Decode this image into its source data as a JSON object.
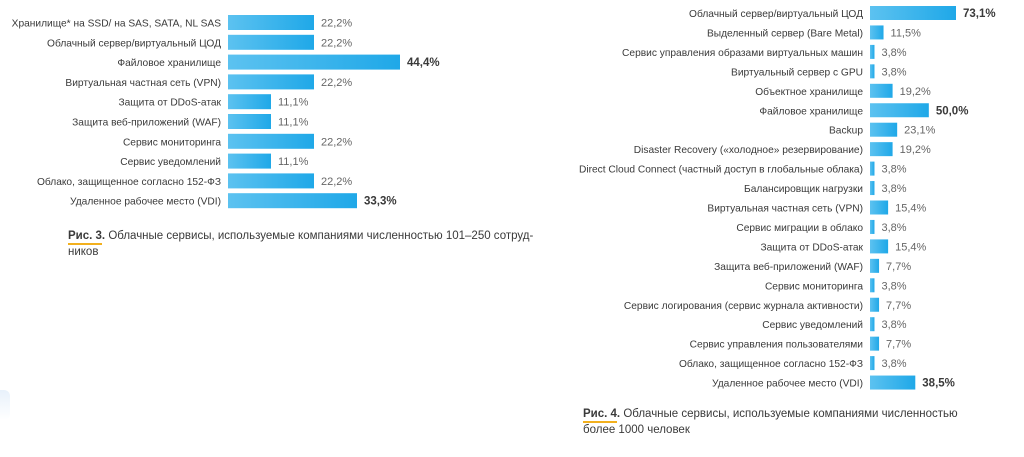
{
  "chart_data": [
    {
      "type": "bar",
      "orientation": "horizontal",
      "categories": [
        "Хранилище* на SSD/  на SAS, SATA, NL SAS",
        "Облачный сервер/виртуальный ЦОД",
        "Файловое хранилище",
        "Виртуальная частная сеть (VPN)",
        "Защита от DDoS-атак",
        "Защита веб-приложений (WAF)",
        "Сервис мониторинга",
        "Сервис уведомлений",
        "Облако, защищенное согласно 152-ФЗ",
        "Удаленное рабочее место (VDI)"
      ],
      "values": [
        22.2,
        22.2,
        44.4,
        22.2,
        11.1,
        11.1,
        22.2,
        11.1,
        22.2,
        33.3
      ],
      "labels": [
        "22,2%",
        "22,2%",
        "44,4%",
        "22,2%",
        "11,1%",
        "11,1%",
        "22,2%",
        "11,1%",
        "22,2%",
        "33,3%"
      ],
      "highlight": [
        2,
        9
      ],
      "color": "#1fa8e8"
    },
    {
      "type": "bar",
      "orientation": "horizontal",
      "categories": [
        "Облачный сервер/виртуальный ЦОД",
        "Выделенный сервер (Bare Metal)",
        "Сервис управления образами виртуальных машин",
        "Виртуальный сервер с GPU",
        "Объектное хранилище",
        "Файловое хранилище",
        "Backup",
        "Disaster Recovery («холодное» резервирование)",
        "Direct Cloud Connect (частный доступ в глобальные облака)",
        "Балансировщик нагрузки",
        "Виртуальная частная сеть (VPN)",
        "Сервис миграции в облако",
        "Защита от DDoS-атак",
        "Защита веб-приложений (WAF)",
        "Сервис мониторинга",
        "Сервис логирования (сервис журнала активности)",
        "Сервис уведомлений",
        "Сервис управления пользователями",
        "Облако, защищенное согласно 152-ФЗ",
        "Удаленное рабочее место (VDI)"
      ],
      "values": [
        73.1,
        11.5,
        3.8,
        3.8,
        19.2,
        50.0,
        23.1,
        19.2,
        3.8,
        3.8,
        15.4,
        3.8,
        15.4,
        7.7,
        3.8,
        7.7,
        3.8,
        7.7,
        3.8,
        38.5
      ],
      "labels": [
        "73,1%",
        "11,5%",
        "3,8%",
        "3,8%",
        "19,2%",
        "50,0%",
        "23,1%",
        "19,2%",
        "3,8%",
        "3,8%",
        "15,4%",
        "3,8%",
        "15,4%",
        "7,7%",
        "3,8%",
        "7,7%",
        "3,8%",
        "7,7%",
        "3,8%",
        "38,5%"
      ],
      "highlight": [
        0,
        5,
        19
      ],
      "color": "#1fa8e8"
    }
  ],
  "captions": [
    {
      "fig": "Рис. 3.",
      "line1": " Облачные сервисы, используемые компаниями численностью 101–250 сотруд-",
      "line2": "ников"
    },
    {
      "fig": "Рис. 4.",
      "line1": " Облачные сервисы, используемые компаниями численностью",
      "line2": "более 1000 человек"
    }
  ]
}
